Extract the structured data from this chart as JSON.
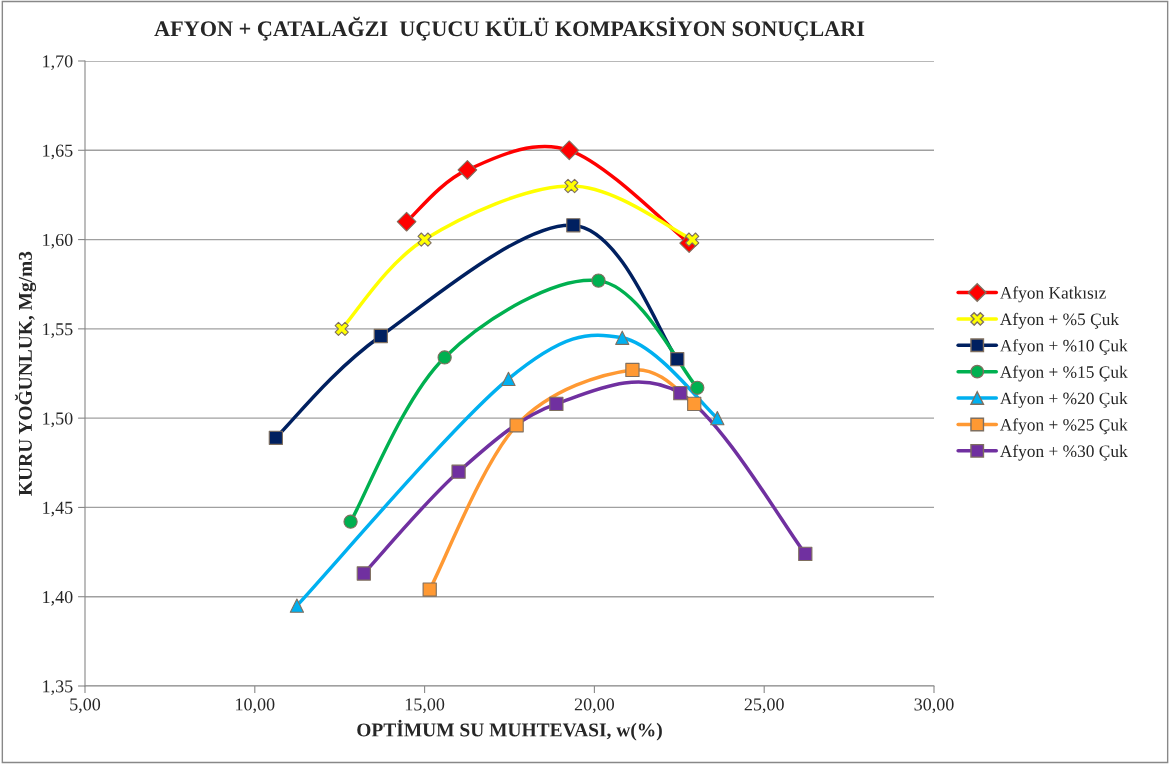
{
  "chart_data": {
    "type": "line",
    "title": "AFYON + ÇATALAĞZI  UÇUCU KÜLÜ KOMPAKSİYON SONUÇLARI",
    "xlabel": "OPTİMUM SU MUHTEVASI, w(%)",
    "ylabel": "KURU YOĞUNLUK, Mg/m3",
    "xlim": [
      5,
      30
    ],
    "ylim": [
      1.35,
      1.7
    ],
    "xticks": [
      {
        "value": 5,
        "label": "5,00"
      },
      {
        "value": 10,
        "label": "10,00"
      },
      {
        "value": 15,
        "label": "15,00"
      },
      {
        "value": 20,
        "label": "20,00"
      },
      {
        "value": 25,
        "label": "25,00"
      },
      {
        "value": 30,
        "label": "30,00"
      }
    ],
    "yticks": [
      {
        "value": 1.35,
        "label": "1,35"
      },
      {
        "value": 1.4,
        "label": "1,40"
      },
      {
        "value": 1.45,
        "label": "1,45"
      },
      {
        "value": 1.5,
        "label": "1,50"
      },
      {
        "value": 1.55,
        "label": "1,55"
      },
      {
        "value": 1.6,
        "label": "1,60"
      },
      {
        "value": 1.65,
        "label": "1,65"
      },
      {
        "value": 1.7,
        "label": "1,70"
      }
    ],
    "grid": "y",
    "legend": "right",
    "line_style": "solid",
    "series": [
      {
        "name": "Afyon Katkısız",
        "color": "#ff0000",
        "marker": "diamond",
        "x": [
          14.47,
          16.26,
          19.26,
          22.79
        ],
        "values": [
          1.61,
          1.639,
          1.65,
          1.598
        ]
      },
      {
        "name": "Afyon + %5 Çuk",
        "color": "#ffff00",
        "marker": "cross",
        "x": [
          12.56,
          15.0,
          19.32,
          22.88
        ],
        "values": [
          1.55,
          1.6,
          1.63,
          1.6
        ]
      },
      {
        "name": "Afyon + %10 Çuk",
        "color": "#002060",
        "marker": "square",
        "x": [
          10.62,
          13.71,
          19.38,
          22.44
        ],
        "values": [
          1.489,
          1.546,
          1.608,
          1.533
        ]
      },
      {
        "name": "Afyon + %15 Çuk",
        "color": "#00b050",
        "marker": "circle",
        "x": [
          12.82,
          15.59,
          20.12,
          23.03
        ],
        "values": [
          1.442,
          1.534,
          1.577,
          1.517
        ]
      },
      {
        "name": "Afyon + %20 Çuk",
        "color": "#00b0f0",
        "marker": "triangle",
        "x": [
          11.24,
          17.47,
          20.82,
          23.62
        ],
        "values": [
          1.395,
          1.522,
          1.545,
          1.5
        ]
      },
      {
        "name": "Afyon + %25 Çuk",
        "color": "#ff9933",
        "marker": "square",
        "x": [
          15.15,
          17.71,
          21.12,
          22.94
        ],
        "values": [
          1.404,
          1.496,
          1.527,
          1.508
        ]
      },
      {
        "name": "Afyon + %30 Çuk",
        "color": "#7030a0",
        "marker": "square",
        "x": [
          13.21,
          16.0,
          18.88,
          22.53,
          26.21
        ],
        "values": [
          1.413,
          1.47,
          1.508,
          1.514,
          1.424
        ]
      }
    ]
  }
}
